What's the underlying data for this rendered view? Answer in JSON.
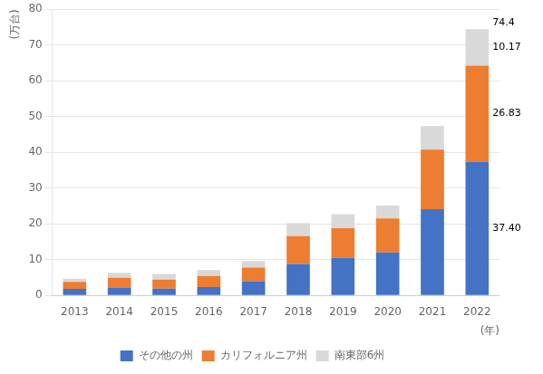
{
  "chart_data": {
    "type": "bar",
    "stacked": true,
    "categories": [
      "2013",
      "2014",
      "2015",
      "2016",
      "2017",
      "2018",
      "2019",
      "2020",
      "2021",
      "2022"
    ],
    "series": [
      {
        "name": "その他の州",
        "color": "#4472C4",
        "values": [
          1.8,
          2.1,
          1.9,
          2.3,
          4.0,
          8.8,
          10.5,
          12.0,
          24.115,
          37.4
        ]
      },
      {
        "name": "カリフォルニア州",
        "color": "#ED7D31",
        "values": [
          2.0,
          2.8,
          2.5,
          3.1,
          3.8,
          7.8,
          8.3,
          9.5,
          16.658,
          26.83
        ]
      },
      {
        "name": "南東部6州",
        "color": "#D9D9D9",
        "values": [
          0.88,
          1.4,
          1.6,
          1.7,
          1.8,
          3.6,
          3.9,
          3.59,
          6.569,
          10.17
        ]
      }
    ],
    "x_label": "(年)",
    "y_label": "(万台)",
    "ylim": [
      0,
      80
    ],
    "yticks": [
      0,
      10,
      20,
      30,
      40,
      50,
      60,
      70,
      80
    ],
    "grid": true,
    "legend": "bottom",
    "annotations": [
      {
        "text": "74.4",
        "category": "2022"
      },
      {
        "text": "10.17",
        "category": "2022",
        "series": "南東部6州"
      },
      {
        "text": "26.83",
        "category": "2022",
        "series": "カリフォルニア州"
      },
      {
        "text": "37.40",
        "category": "2022",
        "series": "その他の州"
      }
    ]
  }
}
